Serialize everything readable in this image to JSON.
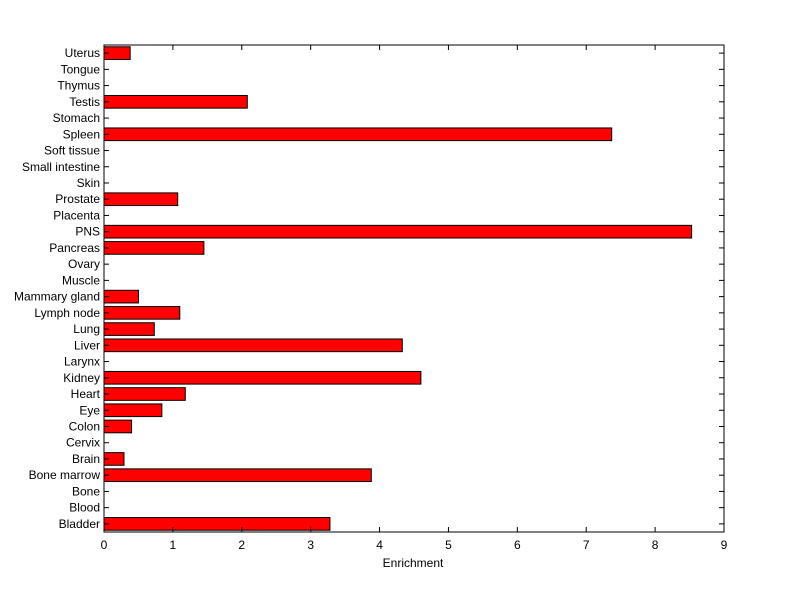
{
  "chart_data": {
    "type": "bar",
    "orientation": "horizontal",
    "title": "",
    "xlabel": "Enrichment",
    "ylabel": "",
    "xlim": [
      0,
      9
    ],
    "x_ticks": [
      "0",
      "1",
      "2",
      "3",
      "4",
      "5",
      "6",
      "7",
      "8",
      "9"
    ],
    "grid": false,
    "bar_color": "#ff0000",
    "edge_color": "#000000",
    "categories": [
      "Bladder",
      "Blood",
      "Bone",
      "Bone marrow",
      "Brain",
      "Cervix",
      "Colon",
      "Eye",
      "Heart",
      "Kidney",
      "Larynx",
      "Liver",
      "Lung",
      "Lymph node",
      "Mammary gland",
      "Muscle",
      "Ovary",
      "Pancreas",
      "PNS",
      "Placenta",
      "Prostate",
      "Skin",
      "Small intestine",
      "Soft tissue",
      "Spleen",
      "Stomach",
      "Testis",
      "Thymus",
      "Tongue",
      "Uterus"
    ],
    "values": [
      3.28,
      0,
      0,
      3.88,
      0.29,
      0,
      0.4,
      0.84,
      1.18,
      4.6,
      0,
      4.33,
      0.73,
      1.1,
      0.5,
      0,
      0,
      1.45,
      8.53,
      0,
      1.07,
      0,
      0,
      0,
      7.37,
      0,
      2.08,
      0,
      0,
      0.38
    ]
  }
}
